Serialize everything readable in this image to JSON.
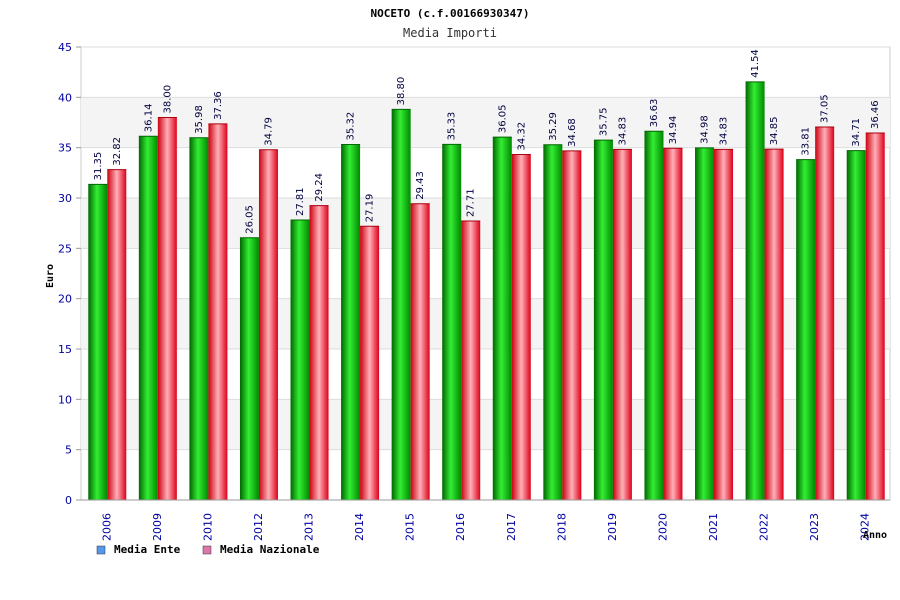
{
  "chart_data": {
    "type": "bar",
    "title": "NOCETO (c.f.00166930347)",
    "subtitle": "Media Importi",
    "ylabel": "Euro",
    "xlabel": "Anno",
    "ylim": [
      0,
      45
    ],
    "yticks": [
      0,
      5,
      10,
      15,
      20,
      25,
      30,
      35,
      40,
      45
    ],
    "grid": true,
    "legend_position": "bottom-left",
    "categories": [
      "2006",
      "2009",
      "2010",
      "2012",
      "2013",
      "2014",
      "2015",
      "2016",
      "2017",
      "2018",
      "2019",
      "2020",
      "2021",
      "2022",
      "2023",
      "2024"
    ],
    "series": [
      {
        "name": "Media Ente",
        "color": "#00b000",
        "legend_color": "#5599ee",
        "values": [
          31.35,
          36.14,
          35.98,
          26.05,
          27.81,
          35.32,
          38.8,
          35.33,
          36.05,
          35.29,
          35.75,
          36.63,
          34.98,
          41.54,
          33.81,
          34.71
        ],
        "labels": [
          "31.35",
          "36.14",
          "35.98",
          "26.05",
          "27.81",
          "35.32",
          "38.80",
          "35.33",
          "36.05",
          "35.29",
          "35.75",
          "36.63",
          "34.98",
          "41.54",
          "33.81",
          "34.71"
        ]
      },
      {
        "name": "Media Nazionale",
        "color": "#e81828",
        "legend_color": "#dd77aa",
        "values": [
          32.82,
          38.0,
          37.36,
          34.79,
          29.24,
          27.19,
          29.43,
          27.71,
          34.32,
          34.68,
          34.83,
          34.94,
          34.83,
          34.85,
          37.05,
          36.46
        ],
        "labels": [
          "32.82",
          "38.00",
          "37.36",
          "34.79",
          "29.24",
          "27.19",
          "29.43",
          "27.71",
          "34.32",
          "34.68",
          "34.83",
          "34.94",
          "34.83",
          "34.85",
          "37.05",
          "36.46"
        ]
      }
    ]
  }
}
